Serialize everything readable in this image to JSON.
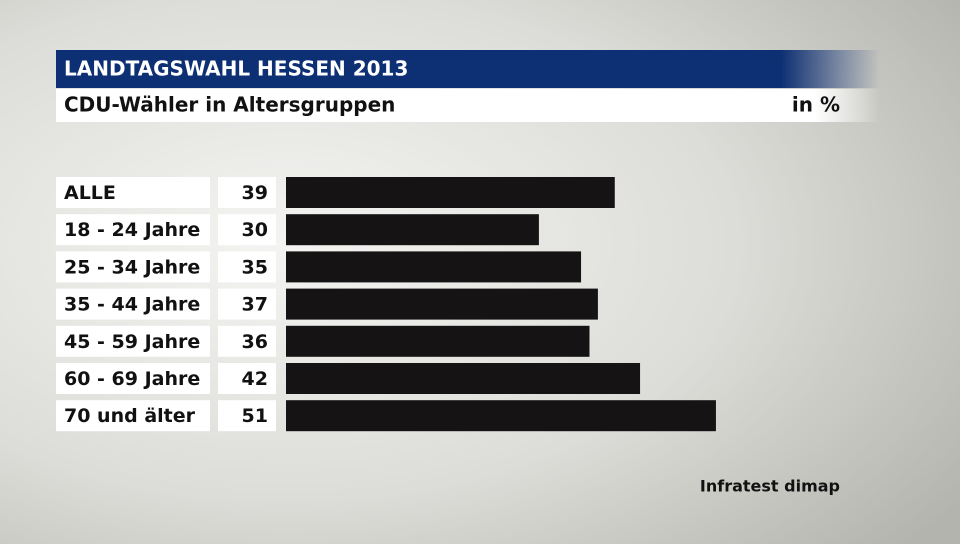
{
  "chart_data": {
    "type": "bar",
    "title": "LANDTAGSWAHL HESSEN 2013",
    "subtitle": "CDU-Wähler in Altersgruppen",
    "unit": "in %",
    "source": "Infratest dimap",
    "categories": [
      "ALLE",
      "18 - 24 Jahre",
      "25 - 34 Jahre",
      "35 - 44 Jahre",
      "45 - 59 Jahre",
      "60 - 69 Jahre",
      "70 und älter"
    ],
    "values": [
      39,
      30,
      35,
      37,
      36,
      42,
      51
    ],
    "color": "#151314"
  }
}
